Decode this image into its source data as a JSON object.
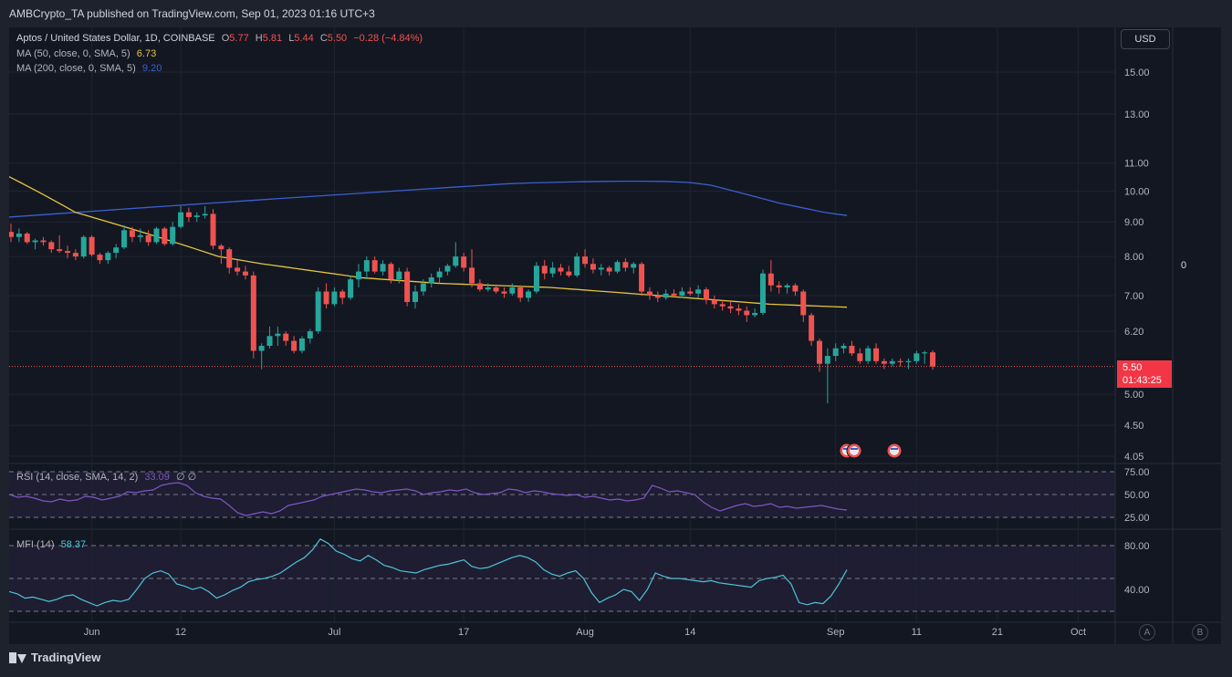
{
  "header": {
    "publisher_line": "AMBCrypto_TA published on TradingView.com, Sep 01, 2023 01:16 UTC+3"
  },
  "legend": {
    "symbol": "Aptos / United States Dollar, 1D, COINBASE",
    "ohlc": {
      "o_label": "O",
      "o": "5.77",
      "h_label": "H",
      "h": "5.81",
      "l_label": "L",
      "l": "5.44",
      "c_label": "C",
      "c": "5.50",
      "change": "−0.28 (−4.84%)"
    },
    "ma50": {
      "label": "MA (50, close, 0, SMA, 5)",
      "value": "6.73"
    },
    "ma200": {
      "label": "MA (200, close, 0, SMA, 5)",
      "value": "9.20"
    },
    "rsi": {
      "label": "RSI (14, close, SMA, 14, 2)",
      "value": "33.09",
      "extra": "∅ ∅"
    },
    "mfi": {
      "label": "MFI (14)",
      "value": "58.37"
    }
  },
  "currency_button": "USD",
  "right_zero": "0",
  "price_tag": {
    "price": "5.50",
    "countdown": "01:43:25"
  },
  "scale_buttons": {
    "a": "A",
    "b": "B"
  },
  "footer": {
    "brand": "TradingView"
  },
  "colors": {
    "up": "#26a69a",
    "down": "#ef5350",
    "ma50": "#e7c53c",
    "ma200": "#3b5fcf",
    "rsi": "#7e57c2",
    "mfi": "#4fc3d9",
    "bg": "#131722"
  },
  "chart_data": {
    "type": "candlestick",
    "title": "Aptos / United States Dollar, 1D, COINBASE",
    "y_ticks": [
      "15.00",
      "13.00",
      "11.00",
      "10.00",
      "9.00",
      "8.00",
      "7.00",
      "6.20",
      "5.00",
      "4.50",
      "4.05"
    ],
    "y_scale": "log",
    "x_ticks": [
      "Jun",
      "12",
      "Jul",
      "17",
      "Aug",
      "14",
      "Sep",
      "11",
      "21",
      "Oct"
    ],
    "candles": [
      {
        "date": "2023-05-22",
        "o": 8.7,
        "h": 8.95,
        "l": 8.4,
        "c": 8.55
      },
      {
        "date": "2023-05-23",
        "o": 8.55,
        "h": 8.8,
        "l": 8.4,
        "c": 8.65
      },
      {
        "date": "2023-05-24",
        "o": 8.65,
        "h": 8.7,
        "l": 8.35,
        "c": 8.4
      },
      {
        "date": "2023-05-25",
        "o": 8.4,
        "h": 8.5,
        "l": 8.2,
        "c": 8.45
      },
      {
        "date": "2023-05-26",
        "o": 8.45,
        "h": 8.55,
        "l": 8.3,
        "c": 8.4
      },
      {
        "date": "2023-05-27",
        "o": 8.4,
        "h": 8.45,
        "l": 8.1,
        "c": 8.2
      },
      {
        "date": "2023-05-28",
        "o": 8.2,
        "h": 8.6,
        "l": 8.1,
        "c": 8.15
      },
      {
        "date": "2023-05-29",
        "o": 8.15,
        "h": 8.3,
        "l": 7.95,
        "c": 8.1
      },
      {
        "date": "2023-05-30",
        "o": 8.1,
        "h": 8.2,
        "l": 7.9,
        "c": 8.0
      },
      {
        "date": "2023-05-31",
        "o": 8.0,
        "h": 8.6,
        "l": 7.95,
        "c": 8.55
      },
      {
        "date": "2023-06-01",
        "o": 8.55,
        "h": 8.6,
        "l": 8.0,
        "c": 8.05
      },
      {
        "date": "2023-06-02",
        "o": 8.05,
        "h": 8.1,
        "l": 7.8,
        "c": 7.9
      },
      {
        "date": "2023-06-03",
        "o": 7.9,
        "h": 8.15,
        "l": 7.8,
        "c": 8.1
      },
      {
        "date": "2023-06-04",
        "o": 8.1,
        "h": 8.35,
        "l": 7.95,
        "c": 8.25
      },
      {
        "date": "2023-06-05",
        "o": 8.25,
        "h": 8.9,
        "l": 8.2,
        "c": 8.75
      },
      {
        "date": "2023-06-06",
        "o": 8.75,
        "h": 8.85,
        "l": 8.4,
        "c": 8.55
      },
      {
        "date": "2023-06-07",
        "o": 8.55,
        "h": 8.8,
        "l": 8.4,
        "c": 8.6
      },
      {
        "date": "2023-06-08",
        "o": 8.6,
        "h": 8.75,
        "l": 8.3,
        "c": 8.4
      },
      {
        "date": "2023-06-09",
        "o": 8.4,
        "h": 8.85,
        "l": 8.35,
        "c": 8.8
      },
      {
        "date": "2023-06-10",
        "o": 8.8,
        "h": 8.85,
        "l": 8.3,
        "c": 8.35
      },
      {
        "date": "2023-06-11",
        "o": 8.35,
        "h": 9.0,
        "l": 8.3,
        "c": 8.85
      },
      {
        "date": "2023-06-12",
        "o": 8.85,
        "h": 9.5,
        "l": 8.8,
        "c": 9.3
      },
      {
        "date": "2023-06-13",
        "o": 9.3,
        "h": 9.45,
        "l": 9.0,
        "c": 9.15
      },
      {
        "date": "2023-06-14",
        "o": 9.15,
        "h": 9.3,
        "l": 9.0,
        "c": 9.2
      },
      {
        "date": "2023-06-15",
        "o": 9.2,
        "h": 9.5,
        "l": 9.1,
        "c": 9.25
      },
      {
        "date": "2023-06-16",
        "o": 9.25,
        "h": 9.4,
        "l": 8.2,
        "c": 8.3
      },
      {
        "date": "2023-06-17",
        "o": 8.3,
        "h": 8.35,
        "l": 7.8,
        "c": 8.2
      },
      {
        "date": "2023-06-18",
        "o": 8.2,
        "h": 8.25,
        "l": 7.55,
        "c": 7.7
      },
      {
        "date": "2023-06-19",
        "o": 7.7,
        "h": 7.9,
        "l": 7.5,
        "c": 7.6
      },
      {
        "date": "2023-06-20",
        "o": 7.6,
        "h": 7.75,
        "l": 7.4,
        "c": 7.5
      },
      {
        "date": "2023-06-21",
        "o": 7.5,
        "h": 7.6,
        "l": 5.65,
        "c": 5.8
      },
      {
        "date": "2023-06-22",
        "o": 5.8,
        "h": 5.95,
        "l": 5.45,
        "c": 5.9
      },
      {
        "date": "2023-06-23",
        "o": 5.9,
        "h": 6.3,
        "l": 5.85,
        "c": 6.1
      },
      {
        "date": "2023-06-24",
        "o": 6.1,
        "h": 6.3,
        "l": 5.9,
        "c": 6.15
      },
      {
        "date": "2023-06-25",
        "o": 6.15,
        "h": 6.2,
        "l": 5.9,
        "c": 6.0
      },
      {
        "date": "2023-06-26",
        "o": 6.0,
        "h": 6.1,
        "l": 5.75,
        "c": 5.8
      },
      {
        "date": "2023-06-27",
        "o": 5.8,
        "h": 6.1,
        "l": 5.75,
        "c": 6.05
      },
      {
        "date": "2023-06-28",
        "o": 6.05,
        "h": 6.25,
        "l": 5.95,
        "c": 6.2
      },
      {
        "date": "2023-06-29",
        "o": 6.2,
        "h": 7.2,
        "l": 6.15,
        "c": 7.1
      },
      {
        "date": "2023-06-30",
        "o": 7.1,
        "h": 7.3,
        "l": 6.7,
        "c": 6.8
      },
      {
        "date": "2023-07-01",
        "o": 6.8,
        "h": 7.2,
        "l": 6.75,
        "c": 7.1
      },
      {
        "date": "2023-07-02",
        "o": 7.1,
        "h": 7.15,
        "l": 6.8,
        "c": 6.95
      },
      {
        "date": "2023-07-03",
        "o": 6.95,
        "h": 7.5,
        "l": 6.9,
        "c": 7.4
      },
      {
        "date": "2023-07-04",
        "o": 7.4,
        "h": 7.8,
        "l": 7.2,
        "c": 7.6
      },
      {
        "date": "2023-07-05",
        "o": 7.6,
        "h": 8.0,
        "l": 7.4,
        "c": 7.9
      },
      {
        "date": "2023-07-06",
        "o": 7.9,
        "h": 8.0,
        "l": 7.55,
        "c": 7.6
      },
      {
        "date": "2023-07-07",
        "o": 7.6,
        "h": 7.9,
        "l": 7.5,
        "c": 7.8
      },
      {
        "date": "2023-07-08",
        "o": 7.8,
        "h": 7.85,
        "l": 7.3,
        "c": 7.4
      },
      {
        "date": "2023-07-09",
        "o": 7.4,
        "h": 7.7,
        "l": 7.3,
        "c": 7.6
      },
      {
        "date": "2023-07-10",
        "o": 7.6,
        "h": 7.7,
        "l": 6.75,
        "c": 6.85
      },
      {
        "date": "2023-07-11",
        "o": 6.85,
        "h": 7.25,
        "l": 6.7,
        "c": 7.1
      },
      {
        "date": "2023-07-12",
        "o": 7.1,
        "h": 7.4,
        "l": 7.0,
        "c": 7.3
      },
      {
        "date": "2023-07-13",
        "o": 7.3,
        "h": 7.55,
        "l": 7.2,
        "c": 7.45
      },
      {
        "date": "2023-07-14",
        "o": 7.45,
        "h": 7.7,
        "l": 7.3,
        "c": 7.6
      },
      {
        "date": "2023-07-15",
        "o": 7.6,
        "h": 7.8,
        "l": 7.5,
        "c": 7.75
      },
      {
        "date": "2023-07-16",
        "o": 7.75,
        "h": 8.4,
        "l": 7.7,
        "c": 8.0
      },
      {
        "date": "2023-07-17",
        "o": 8.0,
        "h": 8.1,
        "l": 7.6,
        "c": 7.7
      },
      {
        "date": "2023-07-18",
        "o": 7.7,
        "h": 8.2,
        "l": 7.2,
        "c": 7.3
      },
      {
        "date": "2023-07-19",
        "o": 7.3,
        "h": 7.4,
        "l": 7.1,
        "c": 7.15
      },
      {
        "date": "2023-07-20",
        "o": 7.15,
        "h": 7.3,
        "l": 7.1,
        "c": 7.2
      },
      {
        "date": "2023-07-21",
        "o": 7.2,
        "h": 7.25,
        "l": 7.05,
        "c": 7.1
      },
      {
        "date": "2023-07-22",
        "o": 7.1,
        "h": 7.2,
        "l": 6.95,
        "c": 7.05
      },
      {
        "date": "2023-07-23",
        "o": 7.05,
        "h": 7.3,
        "l": 7.0,
        "c": 7.2
      },
      {
        "date": "2023-07-24",
        "o": 7.2,
        "h": 7.25,
        "l": 6.85,
        "c": 6.95
      },
      {
        "date": "2023-07-25",
        "o": 6.95,
        "h": 7.15,
        "l": 6.85,
        "c": 7.1
      },
      {
        "date": "2023-07-26",
        "o": 7.1,
        "h": 7.85,
        "l": 7.05,
        "c": 7.75
      },
      {
        "date": "2023-07-27",
        "o": 7.75,
        "h": 7.9,
        "l": 7.4,
        "c": 7.55
      },
      {
        "date": "2023-07-28",
        "o": 7.55,
        "h": 7.85,
        "l": 7.45,
        "c": 7.7
      },
      {
        "date": "2023-07-29",
        "o": 7.7,
        "h": 7.8,
        "l": 7.5,
        "c": 7.6
      },
      {
        "date": "2023-07-30",
        "o": 7.6,
        "h": 7.75,
        "l": 7.45,
        "c": 7.5
      },
      {
        "date": "2023-07-31",
        "o": 7.5,
        "h": 8.1,
        "l": 7.45,
        "c": 8.0
      },
      {
        "date": "2023-08-01",
        "o": 8.0,
        "h": 8.2,
        "l": 7.7,
        "c": 7.8
      },
      {
        "date": "2023-08-02",
        "o": 7.8,
        "h": 7.95,
        "l": 7.55,
        "c": 7.65
      },
      {
        "date": "2023-08-03",
        "o": 7.65,
        "h": 7.8,
        "l": 7.5,
        "c": 7.7
      },
      {
        "date": "2023-08-04",
        "o": 7.7,
        "h": 7.75,
        "l": 7.5,
        "c": 7.6
      },
      {
        "date": "2023-08-05",
        "o": 7.6,
        "h": 7.9,
        "l": 7.55,
        "c": 7.85
      },
      {
        "date": "2023-08-06",
        "o": 7.85,
        "h": 7.95,
        "l": 7.6,
        "c": 7.7
      },
      {
        "date": "2023-08-07",
        "o": 7.7,
        "h": 7.85,
        "l": 7.55,
        "c": 7.8
      },
      {
        "date": "2023-08-08",
        "o": 7.8,
        "h": 7.85,
        "l": 7.0,
        "c": 7.1
      },
      {
        "date": "2023-08-09",
        "o": 7.1,
        "h": 7.2,
        "l": 6.9,
        "c": 7.0
      },
      {
        "date": "2023-08-10",
        "o": 7.0,
        "h": 7.1,
        "l": 6.85,
        "c": 6.95
      },
      {
        "date": "2023-08-11",
        "o": 6.95,
        "h": 7.15,
        "l": 6.9,
        "c": 7.05
      },
      {
        "date": "2023-08-12",
        "o": 7.05,
        "h": 7.15,
        "l": 6.95,
        "c": 7.0
      },
      {
        "date": "2023-08-13",
        "o": 7.0,
        "h": 7.2,
        "l": 6.95,
        "c": 7.1
      },
      {
        "date": "2023-08-14",
        "o": 7.1,
        "h": 7.2,
        "l": 7.0,
        "c": 7.05
      },
      {
        "date": "2023-08-15",
        "o": 7.05,
        "h": 7.25,
        "l": 6.95,
        "c": 7.15
      },
      {
        "date": "2023-08-16",
        "o": 7.15,
        "h": 7.2,
        "l": 6.8,
        "c": 6.9
      },
      {
        "date": "2023-08-17",
        "o": 6.9,
        "h": 7.0,
        "l": 6.7,
        "c": 6.8
      },
      {
        "date": "2023-08-18",
        "o": 6.8,
        "h": 6.9,
        "l": 6.65,
        "c": 6.75
      },
      {
        "date": "2023-08-19",
        "o": 6.75,
        "h": 6.85,
        "l": 6.6,
        "c": 6.7
      },
      {
        "date": "2023-08-20",
        "o": 6.7,
        "h": 6.8,
        "l": 6.55,
        "c": 6.65
      },
      {
        "date": "2023-08-21",
        "o": 6.65,
        "h": 6.75,
        "l": 6.4,
        "c": 6.55
      },
      {
        "date": "2023-08-22",
        "o": 6.55,
        "h": 6.7,
        "l": 6.5,
        "c": 6.6
      },
      {
        "date": "2023-08-23",
        "o": 6.6,
        "h": 7.65,
        "l": 6.55,
        "c": 7.55
      },
      {
        "date": "2023-08-24",
        "o": 7.55,
        "h": 7.9,
        "l": 7.1,
        "c": 7.25
      },
      {
        "date": "2023-08-25",
        "o": 7.25,
        "h": 7.35,
        "l": 7.05,
        "c": 7.2
      },
      {
        "date": "2023-08-26",
        "o": 7.2,
        "h": 7.3,
        "l": 7.05,
        "c": 7.25
      },
      {
        "date": "2023-08-27",
        "o": 7.25,
        "h": 7.3,
        "l": 7.0,
        "c": 7.1
      },
      {
        "date": "2023-08-28",
        "o": 7.1,
        "h": 7.15,
        "l": 6.4,
        "c": 6.55
      },
      {
        "date": "2023-08-29",
        "o": 6.55,
        "h": 6.6,
        "l": 5.9,
        "c": 6.0
      },
      {
        "date": "2023-08-30",
        "o": 6.0,
        "h": 6.05,
        "l": 5.4,
        "c": 5.55
      },
      {
        "date": "2023-08-31",
        "o": 5.55,
        "h": 5.85,
        "l": 4.85,
        "c": 5.7
      },
      {
        "date": "2023-09-01",
        "o": 5.7,
        "h": 5.95,
        "l": 5.6,
        "c": 5.85
      },
      {
        "date": "2023-09-02",
        "o": 5.85,
        "h": 5.95,
        "l": 5.75,
        "c": 5.9
      },
      {
        "date": "2023-09-03",
        "o": 5.9,
        "h": 6.0,
        "l": 5.7,
        "c": 5.75
      },
      {
        "date": "2023-09-04",
        "o": 5.75,
        "h": 5.85,
        "l": 5.55,
        "c": 5.6
      },
      {
        "date": "2023-09-05",
        "o": 5.6,
        "h": 5.9,
        "l": 5.55,
        "c": 5.85
      },
      {
        "date": "2023-09-06",
        "o": 5.85,
        "h": 5.95,
        "l": 5.55,
        "c": 5.6
      },
      {
        "date": "2023-09-07",
        "o": 5.6,
        "h": 5.65,
        "l": 5.45,
        "c": 5.55
      },
      {
        "date": "2023-09-08",
        "o": 5.55,
        "h": 5.65,
        "l": 5.5,
        "c": 5.6
      },
      {
        "date": "2023-09-09",
        "o": 5.6,
        "h": 5.65,
        "l": 5.5,
        "c": 5.58
      },
      {
        "date": "2023-09-10",
        "o": 5.58,
        "h": 5.65,
        "l": 5.45,
        "c": 5.6
      },
      {
        "date": "2023-09-11",
        "o": 5.6,
        "h": 5.8,
        "l": 5.55,
        "c": 5.75
      },
      {
        "date": "2023-09-12",
        "o": 5.75,
        "h": 5.8,
        "l": 5.55,
        "c": 5.77
      },
      {
        "date": "2023-09-13",
        "o": 5.77,
        "h": 5.81,
        "l": 5.44,
        "c": 5.5
      }
    ],
    "ma50": [
      10.5,
      10.3,
      10.1,
      9.9,
      9.7,
      9.5,
      9.3,
      9.2,
      9.1,
      9.0,
      8.9,
      8.8,
      8.7,
      8.6,
      8.5,
      8.4,
      8.3,
      8.2,
      8.1,
      8.0,
      7.95,
      7.9,
      7.85,
      7.8,
      7.76,
      7.72,
      7.68,
      7.64,
      7.6,
      7.56,
      7.52,
      7.48,
      7.44,
      7.42,
      7.4,
      7.38,
      7.36,
      7.34,
      7.32,
      7.3,
      7.29,
      7.28,
      7.27,
      7.26,
      7.25,
      7.24,
      7.23,
      7.22,
      7.21,
      7.2,
      7.18,
      7.16,
      7.14,
      7.12,
      7.1,
      7.08,
      7.06,
      7.04,
      7.02,
      7.0,
      6.98,
      6.96,
      6.94,
      6.92,
      6.9,
      6.88,
      6.86,
      6.84,
      6.82,
      6.8,
      6.79,
      6.78,
      6.77,
      6.76,
      6.75,
      6.74,
      6.73
    ],
    "ma200": [
      9.15,
      9.2,
      9.25,
      9.3,
      9.35,
      9.4,
      9.45,
      9.5,
      9.55,
      9.6,
      9.65,
      9.7,
      9.75,
      9.8,
      9.85,
      9.9,
      9.95,
      10.0,
      10.05,
      10.1,
      10.15,
      10.2,
      10.25,
      10.28,
      10.3,
      10.32,
      10.33,
      10.34,
      10.34,
      10.33,
      10.3,
      10.2,
      10.0,
      9.8,
      9.6,
      9.45,
      9.3,
      9.2
    ],
    "rsi": {
      "label": "RSI",
      "levels": [
        75,
        50,
        25
      ],
      "y_ticks": [
        "75.00",
        "50.00",
        "25.00"
      ],
      "values": [
        50,
        47,
        48,
        46,
        43,
        42,
        45,
        43,
        44,
        48,
        47,
        44,
        46,
        48,
        53,
        52,
        54,
        55,
        60,
        62,
        63,
        60,
        52,
        48,
        46,
        45,
        38,
        30,
        27,
        29,
        31,
        29,
        32,
        38,
        40,
        42,
        44,
        48,
        50,
        52,
        54,
        56,
        55,
        53,
        52,
        54,
        55,
        56,
        54,
        50,
        52,
        53,
        55,
        54,
        56,
        52,
        50,
        51,
        52,
        56,
        55,
        52,
        54,
        53,
        51,
        50,
        49,
        50,
        47,
        48,
        46,
        44,
        45,
        43,
        44,
        46,
        60,
        57,
        53,
        54,
        52,
        50,
        42,
        36,
        32,
        35,
        38,
        40,
        37,
        38,
        40,
        36,
        37,
        35,
        36,
        37,
        38,
        36,
        34,
        33
      ]
    },
    "mfi": {
      "label": "MFI",
      "levels": [
        80,
        50,
        20
      ],
      "y_ticks": [
        "80.00",
        "40.00"
      ],
      "values": [
        38,
        36,
        32,
        33,
        31,
        29,
        31,
        34,
        35,
        31,
        28,
        25,
        28,
        30,
        29,
        31,
        40,
        50,
        55,
        57,
        54,
        45,
        43,
        40,
        42,
        38,
        32,
        35,
        39,
        42,
        47,
        49,
        50,
        52,
        55,
        60,
        65,
        69,
        76,
        86,
        82,
        75,
        72,
        68,
        66,
        71,
        67,
        62,
        60,
        57,
        56,
        55,
        58,
        60,
        62,
        63,
        65,
        67,
        61,
        59,
        60,
        63,
        66,
        69,
        71,
        69,
        65,
        58,
        54,
        52,
        55,
        57,
        50,
        37,
        28,
        32,
        35,
        40,
        38,
        30,
        40,
        55,
        52,
        50,
        50,
        49,
        48,
        47,
        48,
        46,
        45,
        44,
        43,
        42,
        48,
        50,
        51,
        53,
        45,
        28,
        26,
        28,
        27,
        34,
        45,
        58
      ]
    },
    "x_label": "",
    "y_label": ""
  }
}
